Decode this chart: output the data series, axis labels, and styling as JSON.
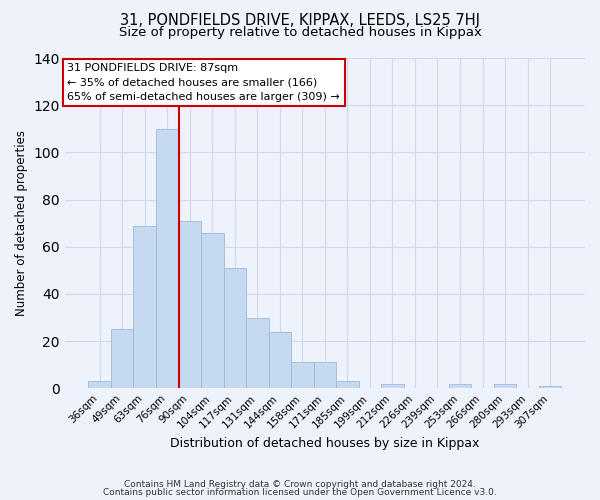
{
  "title": "31, PONDFIELDS DRIVE, KIPPAX, LEEDS, LS25 7HJ",
  "subtitle": "Size of property relative to detached houses in Kippax",
  "xlabel": "Distribution of detached houses by size in Kippax",
  "ylabel": "Number of detached properties",
  "bar_labels": [
    "36sqm",
    "49sqm",
    "63sqm",
    "76sqm",
    "90sqm",
    "104sqm",
    "117sqm",
    "131sqm",
    "144sqm",
    "158sqm",
    "171sqm",
    "185sqm",
    "199sqm",
    "212sqm",
    "226sqm",
    "239sqm",
    "253sqm",
    "266sqm",
    "280sqm",
    "293sqm",
    "307sqm"
  ],
  "bar_heights": [
    3,
    25,
    69,
    110,
    71,
    66,
    51,
    30,
    24,
    11,
    11,
    3,
    0,
    2,
    0,
    0,
    2,
    0,
    2,
    0,
    1
  ],
  "bar_color": "#c5d9f1",
  "bar_edge_color": "#a0b8d8",
  "vline_color": "#cc0000",
  "ylim": [
    0,
    140
  ],
  "yticks": [
    0,
    20,
    40,
    60,
    80,
    100,
    120,
    140
  ],
  "annotation_line1": "31 PONDFIELDS DRIVE: 87sqm",
  "annotation_line2": "← 35% of detached houses are smaller (166)",
  "annotation_line3": "65% of semi-detached houses are larger (309) →",
  "footer_line1": "Contains HM Land Registry data © Crown copyright and database right 2024.",
  "footer_line2": "Contains public sector information licensed under the Open Government Licence v3.0.",
  "background_color": "#eef2fb",
  "plot_bg_color": "#eef2fb",
  "grid_color": "#d0d8ee",
  "title_fontsize": 10.5,
  "subtitle_fontsize": 9.5,
  "ylabel_fontsize": 8.5,
  "xlabel_fontsize": 9.0,
  "tick_fontsize": 7.5,
  "annot_fontsize": 8.0,
  "footer_fontsize": 6.5
}
